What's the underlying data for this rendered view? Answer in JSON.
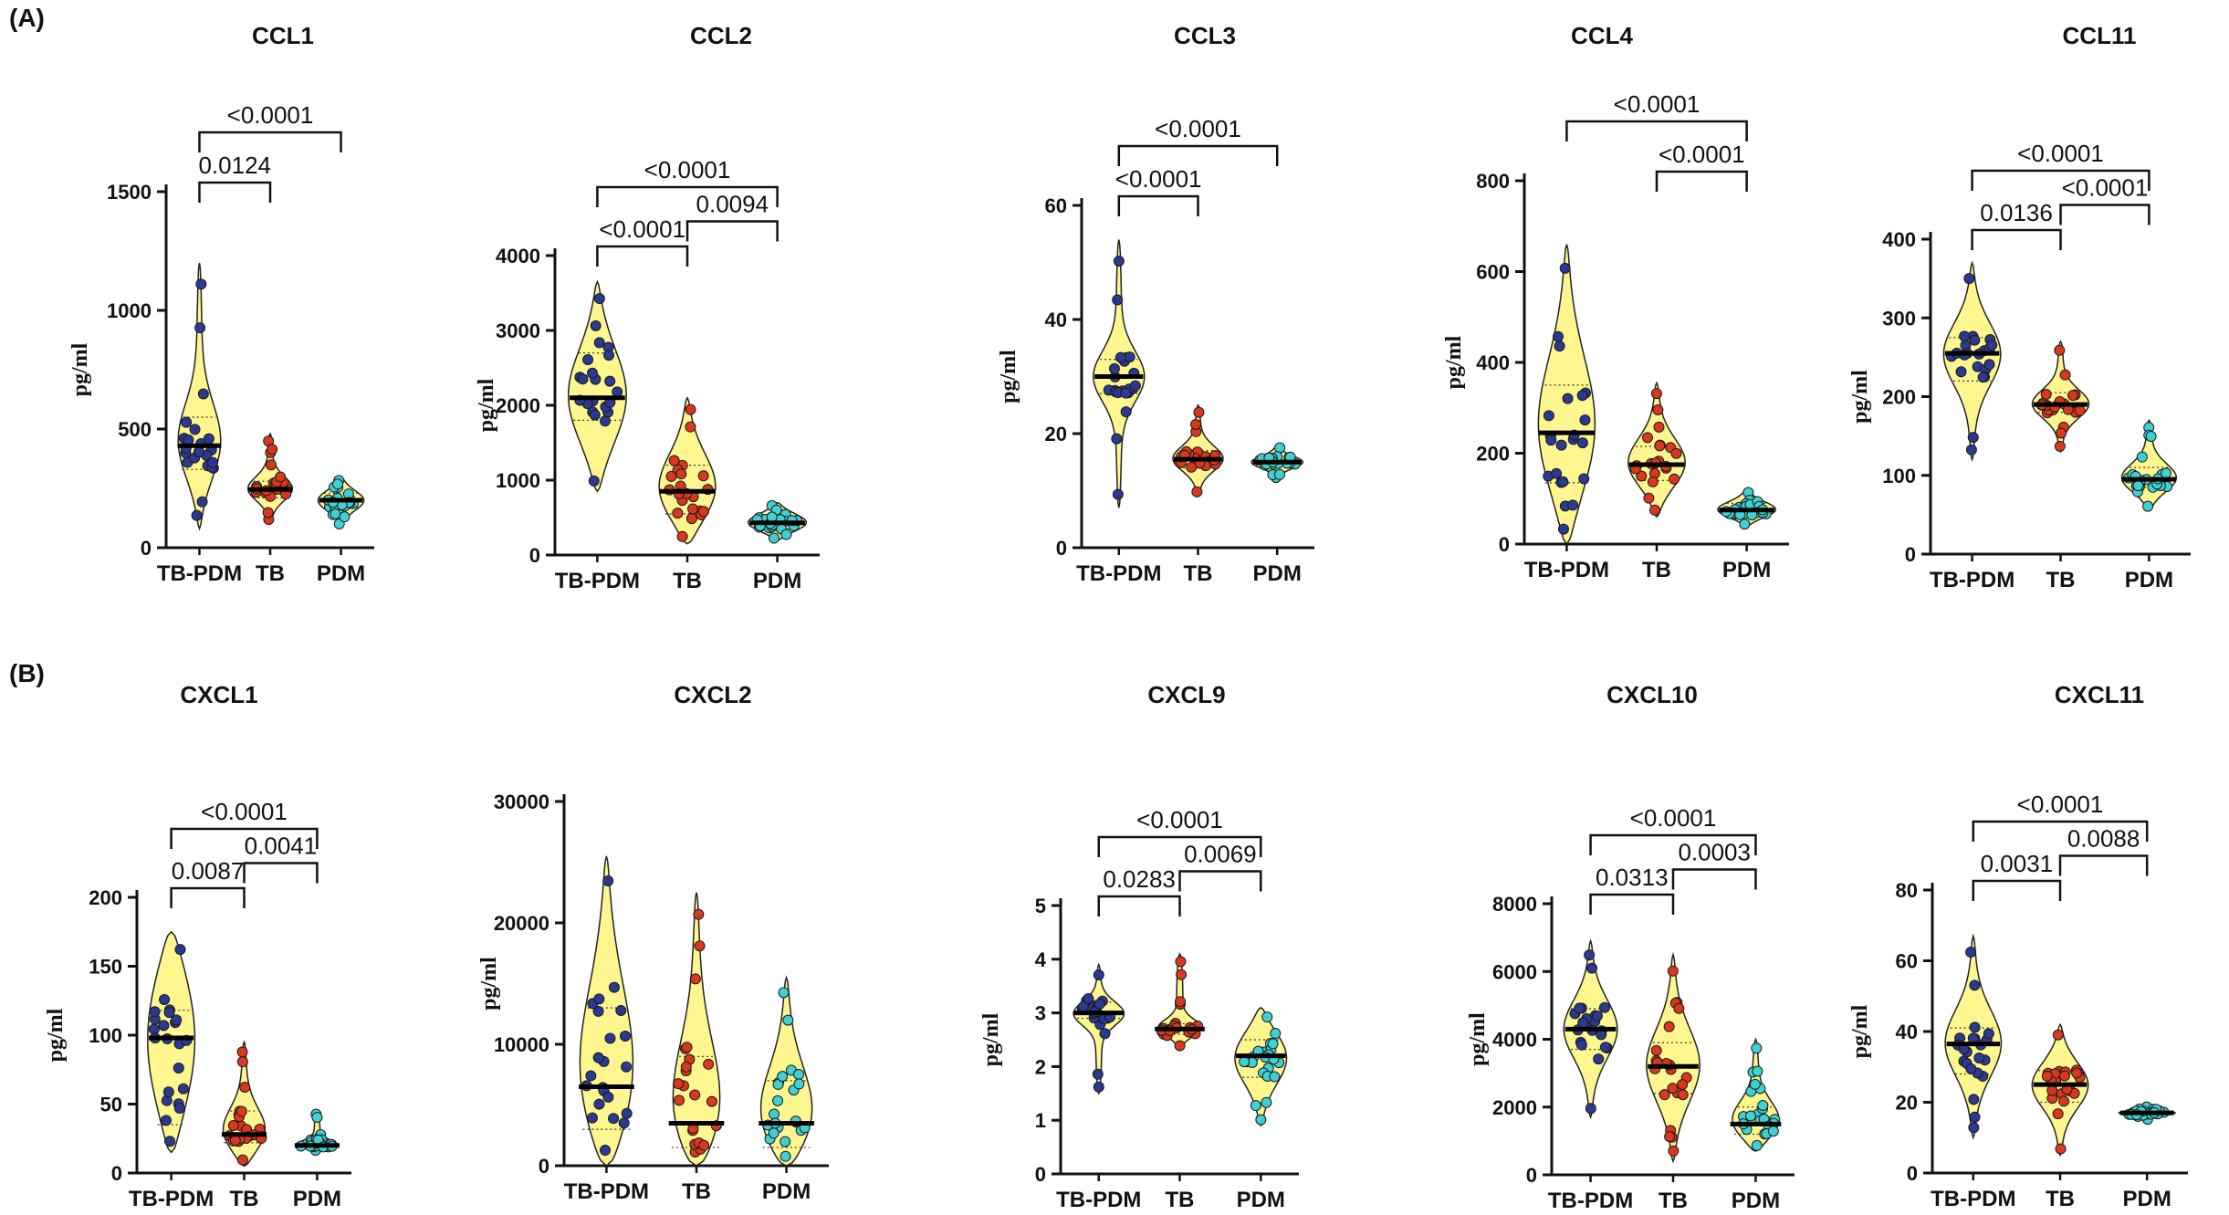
{
  "figure": {
    "panel_a_label": "(A)",
    "panel_b_label": "(B)",
    "groups": [
      "TB-PDM",
      "TB",
      "PDM"
    ],
    "ylabel": "pg/ml",
    "colors": {
      "violin_fill": "#FFF68F",
      "dot_TB-PDM": "#2B3990",
      "dot_TB": "#D9381E",
      "dot_PDM": "#3FD0D4",
      "dot_edge": "#1a1a1a",
      "line": "#111111"
    }
  },
  "chart_data": [
    {
      "type": "violin",
      "title": "CCL1",
      "ylabel": "pg/ml",
      "categories": [
        "TB-PDM",
        "TB",
        "PDM"
      ],
      "ylim": [
        0,
        1500
      ],
      "yticks": [
        0,
        500,
        1000,
        1500
      ],
      "violins": [
        {
          "name": "TB-PDM",
          "min": 80,
          "max": 1200,
          "median": 430,
          "q1": 330,
          "q3": 550
        },
        {
          "name": "TB",
          "min": 100,
          "max": 480,
          "median": 245,
          "q1": 210,
          "q3": 280
        },
        {
          "name": "PDM",
          "min": 90,
          "max": 300,
          "median": 200,
          "q1": 170,
          "q3": 230
        }
      ],
      "comparisons": [
        {
          "from": "TB-PDM",
          "to": "TB",
          "label": "0.0124"
        },
        {
          "from": "TB-PDM",
          "to": "PDM",
          "label": "<0.0001"
        }
      ]
    },
    {
      "type": "violin",
      "title": "CCL2",
      "ylabel": "pg/ml",
      "categories": [
        "TB-PDM",
        "TB",
        "PDM"
      ],
      "ylim": [
        0,
        4000
      ],
      "yticks": [
        0,
        1000,
        2000,
        3000,
        4000
      ],
      "violins": [
        {
          "name": "TB-PDM",
          "min": 850,
          "max": 3650,
          "median": 2100,
          "q1": 1800,
          "q3": 2700
        },
        {
          "name": "TB",
          "min": 150,
          "max": 2100,
          "median": 850,
          "q1": 550,
          "q3": 1200
        },
        {
          "name": "PDM",
          "min": 200,
          "max": 700,
          "median": 430,
          "q1": 350,
          "q3": 520
        }
      ],
      "comparisons": [
        {
          "from": "TB-PDM",
          "to": "TB",
          "label": "<0.0001"
        },
        {
          "from": "TB",
          "to": "PDM",
          "label": "0.0094"
        },
        {
          "from": "TB-PDM",
          "to": "PDM",
          "label": "<0.0001"
        }
      ]
    },
    {
      "type": "violin",
      "title": "CCL3",
      "ylabel": "pg/ml",
      "categories": [
        "TB-PDM",
        "TB",
        "PDM"
      ],
      "ylim": [
        0,
        60
      ],
      "yticks": [
        0,
        20,
        40,
        60
      ],
      "violins": [
        {
          "name": "TB-PDM",
          "min": 7,
          "max": 54,
          "median": 30,
          "q1": 27,
          "q3": 33
        },
        {
          "name": "TB",
          "min": 9,
          "max": 25,
          "median": 15.5,
          "q1": 14,
          "q3": 17
        },
        {
          "name": "PDM",
          "min": 12,
          "max": 18,
          "median": 15,
          "q1": 14.5,
          "q3": 16
        }
      ],
      "comparisons": [
        {
          "from": "TB-PDM",
          "to": "TB",
          "label": "<0.0001"
        },
        {
          "from": "TB-PDM",
          "to": "PDM",
          "label": "<0.0001"
        }
      ]
    },
    {
      "type": "violin",
      "title": "CCL4",
      "ylabel": "pg/ml",
      "categories": [
        "TB-PDM",
        "TB",
        "PDM"
      ],
      "ylim": [
        0,
        800
      ],
      "yticks": [
        0,
        200,
        400,
        600,
        800
      ],
      "violins": [
        {
          "name": "TB-PDM",
          "min": 0,
          "max": 660,
          "median": 245,
          "q1": 135,
          "q3": 350
        },
        {
          "name": "TB",
          "min": 60,
          "max": 355,
          "median": 175,
          "q1": 140,
          "q3": 215
        },
        {
          "name": "PDM",
          "min": 40,
          "max": 120,
          "median": 75,
          "q1": 65,
          "q3": 90
        }
      ],
      "comparisons": [
        {
          "from": "TB",
          "to": "PDM",
          "label": "<0.0001"
        },
        {
          "from": "TB-PDM",
          "to": "PDM",
          "label": "<0.0001"
        }
      ]
    },
    {
      "type": "violin",
      "title": "CCL11",
      "ylabel": "pg/ml",
      "categories": [
        "TB-PDM",
        "TB",
        "PDM"
      ],
      "ylim": [
        0,
        400
      ],
      "yticks": [
        0,
        100,
        200,
        300,
        400
      ],
      "violins": [
        {
          "name": "TB-PDM",
          "min": 120,
          "max": 370,
          "median": 255,
          "q1": 220,
          "q3": 275
        },
        {
          "name": "TB",
          "min": 130,
          "max": 270,
          "median": 190,
          "q1": 180,
          "q3": 205
        },
        {
          "name": "PDM",
          "min": 55,
          "max": 170,
          "median": 95,
          "q1": 85,
          "q3": 110
        }
      ],
      "comparisons": [
        {
          "from": "TB-PDM",
          "to": "TB",
          "label": "0.0136"
        },
        {
          "from": "TB",
          "to": "PDM",
          "label": "<0.0001"
        },
        {
          "from": "TB-PDM",
          "to": "PDM",
          "label": "<0.0001"
        }
      ]
    },
    {
      "type": "violin",
      "title": "CXCL1",
      "ylabel": "pg/ml",
      "categories": [
        "TB-PDM",
        "TB",
        "PDM"
      ],
      "ylim": [
        0,
        200
      ],
      "yticks": [
        0,
        50,
        100,
        150,
        200
      ],
      "violins": [
        {
          "name": "TB-PDM",
          "min": 15,
          "max": 175,
          "median": 98,
          "q1": 35,
          "q3": 118
        },
        {
          "name": "TB",
          "min": 5,
          "max": 95,
          "median": 28,
          "q1": 22,
          "q3": 45
        },
        {
          "name": "PDM",
          "min": 15,
          "max": 45,
          "median": 20,
          "q1": 19,
          "q3": 24
        }
      ],
      "comparisons": [
        {
          "from": "TB-PDM",
          "to": "TB",
          "label": "0.0087"
        },
        {
          "from": "TB",
          "to": "PDM",
          "label": "0.0041"
        },
        {
          "from": "TB-PDM",
          "to": "PDM",
          "label": "<0.0001"
        }
      ]
    },
    {
      "type": "violin",
      "title": "CXCL2",
      "ylabel": "pg/ml",
      "categories": [
        "TB-PDM",
        "TB",
        "PDM"
      ],
      "ylim": [
        0,
        30000
      ],
      "yticks": [
        0,
        10000,
        20000,
        30000
      ],
      "violins": [
        {
          "name": "TB-PDM",
          "min": 0,
          "max": 25500,
          "median": 6500,
          "q1": 3000,
          "q3": 13000
        },
        {
          "name": "TB",
          "min": 0,
          "max": 22500,
          "median": 3500,
          "q1": 1500,
          "q3": 9000
        },
        {
          "name": "PDM",
          "min": 0,
          "max": 15500,
          "median": 3500,
          "q1": 1500,
          "q3": 7000
        }
      ],
      "comparisons": []
    },
    {
      "type": "violin",
      "title": "CXCL9",
      "ylabel": "pg/ml",
      "categories": [
        "TB-PDM",
        "TB",
        "PDM"
      ],
      "ylim": [
        0,
        5
      ],
      "yticks": [
        0,
        1,
        2,
        3,
        4,
        5
      ],
      "violins": [
        {
          "name": "TB-PDM",
          "min": 1.5,
          "max": 3.9,
          "median": 3.0,
          "q1": 2.9,
          "q3": 3.2
        },
        {
          "name": "TB",
          "min": 2.3,
          "max": 4.1,
          "median": 2.7,
          "q1": 2.6,
          "q3": 2.8
        },
        {
          "name": "PDM",
          "min": 0.9,
          "max": 3.1,
          "median": 2.2,
          "q1": 1.8,
          "q3": 2.5
        }
      ],
      "comparisons": [
        {
          "from": "TB-PDM",
          "to": "TB",
          "label": "0.0283"
        },
        {
          "from": "TB",
          "to": "PDM",
          "label": "0.0069"
        },
        {
          "from": "TB-PDM",
          "to": "PDM",
          "label": "<0.0001"
        }
      ]
    },
    {
      "type": "violin",
      "title": "CXCL10",
      "ylabel": "pg/ml",
      "categories": [
        "TB-PDM",
        "TB",
        "PDM"
      ],
      "ylim": [
        0,
        8000
      ],
      "yticks": [
        0,
        2000,
        4000,
        6000,
        8000
      ],
      "violins": [
        {
          "name": "TB-PDM",
          "min": 1700,
          "max": 6900,
          "median": 4300,
          "q1": 3700,
          "q3": 4900
        },
        {
          "name": "TB",
          "min": 400,
          "max": 6500,
          "median": 3200,
          "q1": 2400,
          "q3": 3900
        },
        {
          "name": "PDM",
          "min": 700,
          "max": 4000,
          "median": 1500,
          "q1": 1200,
          "q3": 2000
        }
      ],
      "comparisons": [
        {
          "from": "TB-PDM",
          "to": "TB",
          "label": "0.0313"
        },
        {
          "from": "TB",
          "to": "PDM",
          "label": "0.0003"
        },
        {
          "from": "TB-PDM",
          "to": "PDM",
          "label": "<0.0001"
        }
      ]
    },
    {
      "type": "violin",
      "title": "CXCL11",
      "ylabel": "pg/ml",
      "categories": [
        "TB-PDM",
        "TB",
        "PDM"
      ],
      "ylim": [
        0,
        80
      ],
      "yticks": [
        0,
        20,
        40,
        60,
        80
      ],
      "violins": [
        {
          "name": "TB-PDM",
          "min": 10,
          "max": 67,
          "median": 36.5,
          "q1": 28,
          "q3": 41
        },
        {
          "name": "TB",
          "min": 5,
          "max": 42,
          "median": 25,
          "q1": 20,
          "q3": 29
        },
        {
          "name": "PDM",
          "min": 15,
          "max": 19,
          "median": 17,
          "q1": 16.5,
          "q3": 17.5
        }
      ],
      "comparisons": [
        {
          "from": "TB-PDM",
          "to": "TB",
          "label": "0.0031"
        },
        {
          "from": "TB",
          "to": "PDM",
          "label": "0.0088"
        },
        {
          "from": "TB-PDM",
          "to": "PDM",
          "label": "<0.0001"
        }
      ]
    }
  ]
}
